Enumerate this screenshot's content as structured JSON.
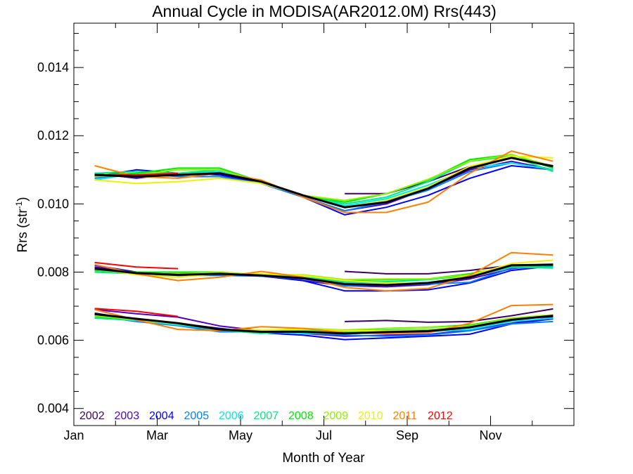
{
  "chart_data": {
    "type": "line",
    "title": "Annual Cycle in MODISA(AR2012.0M) Rrs(443)",
    "xlabel": "Month of Year",
    "ylabel_main": "Rrs (str",
    "ylabel_sup": "-1",
    "ylabel_close": ")",
    "xlim": [
      1,
      13
    ],
    "ylim": [
      0.0035,
      0.0153
    ],
    "x_ticks": [
      {
        "value": 1,
        "label": "Jan"
      },
      {
        "value": 3,
        "label": "Mar"
      },
      {
        "value": 5,
        "label": "May"
      },
      {
        "value": 7,
        "label": "Jul"
      },
      {
        "value": 9,
        "label": "Sep"
      },
      {
        "value": 11,
        "label": "Nov"
      }
    ],
    "y_ticks": [
      {
        "value": 0.004,
        "label": "0.004"
      },
      {
        "value": 0.006,
        "label": "0.006"
      },
      {
        "value": 0.008,
        "label": "0.008"
      },
      {
        "value": 0.01,
        "label": "0.010"
      },
      {
        "value": 0.012,
        "label": "0.012"
      },
      {
        "value": 0.014,
        "label": "0.014"
      }
    ],
    "x_minor_ticks": [
      2,
      4,
      6,
      8,
      10,
      12
    ],
    "y_minor_ticks": [
      0.0045,
      0.005,
      0.0055,
      0.0065,
      0.007,
      0.0075,
      0.0085,
      0.009,
      0.0095,
      0.0105,
      0.011,
      0.0115,
      0.0125,
      0.013,
      0.0135,
      0.0145,
      0.015
    ],
    "x": [
      1.5,
      2.5,
      3.5,
      4.5,
      5.5,
      6.5,
      7.5,
      8.5,
      9.5,
      10.5,
      11.5,
      12.5
    ],
    "series": [
      {
        "name": "2002",
        "color": "#400060",
        "groups": [
          [
            null,
            null,
            null,
            null,
            null,
            null,
            0.0103,
            0.0103,
            0.01065,
            0.0111,
            0.01135,
            0.01112
          ],
          [
            null,
            null,
            null,
            null,
            null,
            null,
            0.00802,
            0.00795,
            0.00795,
            0.00805,
            0.0082,
            0.00822
          ],
          [
            null,
            null,
            null,
            null,
            null,
            null,
            0.00655,
            0.00658,
            0.00653,
            0.00655,
            0.00672,
            0.00692
          ]
        ]
      },
      {
        "name": "2003",
        "color": "#5000c0",
        "groups": [
          [
            0.0109,
            0.01075,
            0.0109,
            0.01095,
            0.0106,
            0.0102,
            0.0098,
            0.01,
            0.01045,
            0.011,
            0.01125,
            0.011
          ],
          [
            0.00815,
            0.008,
            0.0079,
            0.00792,
            0.00788,
            0.00775,
            0.0076,
            0.00757,
            0.00763,
            0.0078,
            0.0081,
            0.00822
          ],
          [
            0.0069,
            0.00678,
            0.00668,
            0.00642,
            0.00628,
            0.0062,
            0.00612,
            0.00615,
            0.00617,
            0.0063,
            0.0065,
            0.00668
          ]
        ]
      },
      {
        "name": "2004",
        "color": "#0000ff",
        "groups": [
          [
            0.0108,
            0.011,
            0.0109,
            0.01085,
            0.0106,
            0.0102,
            0.00968,
            0.0099,
            0.01025,
            0.01075,
            0.01112,
            0.011
          ],
          [
            0.0082,
            0.008,
            0.008,
            0.008,
            0.0079,
            0.00775,
            0.00745,
            0.00745,
            0.00748,
            0.00768,
            0.00805,
            0.00818
          ],
          [
            0.0068,
            0.0066,
            0.0065,
            0.00635,
            0.00622,
            0.00615,
            0.00602,
            0.00607,
            0.00612,
            0.00618,
            0.00648,
            0.00663
          ]
        ]
      },
      {
        "name": "2005",
        "color": "#0080ff",
        "groups": [
          [
            0.01075,
            0.0109,
            0.0108,
            0.0108,
            0.0106,
            0.0102,
            0.0098,
            0.01005,
            0.0104,
            0.01095,
            0.0112,
            0.011
          ],
          [
            0.00808,
            0.00795,
            0.0079,
            0.0079,
            0.00788,
            0.0078,
            0.0076,
            0.00762,
            0.00765,
            0.0077,
            0.00812,
            0.00815
          ],
          [
            0.00672,
            0.00655,
            0.00643,
            0.00625,
            0.00625,
            0.00622,
            0.00615,
            0.00612,
            0.00615,
            0.00628,
            0.00648,
            0.00655
          ]
        ]
      },
      {
        "name": "2006",
        "color": "#00e8e8",
        "groups": [
          [
            0.0107,
            0.0109,
            0.0109,
            0.01095,
            0.01062,
            0.01025,
            0.00995,
            0.01015,
            0.01055,
            0.01105,
            0.0112,
            0.011
          ],
          [
            0.00805,
            0.00795,
            0.00792,
            0.00795,
            0.0079,
            0.00782,
            0.0077,
            0.00768,
            0.0077,
            0.00785,
            0.00815,
            0.00815
          ],
          [
            0.00665,
            0.00658,
            0.00645,
            0.0063,
            0.00625,
            0.0062,
            0.0062,
            0.00622,
            0.00625,
            0.00632,
            0.00655,
            0.00665
          ]
        ]
      },
      {
        "name": "2007",
        "color": "#00e880",
        "groups": [
          [
            0.0109,
            0.01095,
            0.0109,
            0.011,
            0.01065,
            0.01025,
            0.01,
            0.0102,
            0.01065,
            0.01125,
            0.0114,
            0.01095
          ],
          [
            0.008,
            0.00795,
            0.00795,
            0.008,
            0.0079,
            0.00785,
            0.00772,
            0.00772,
            0.00778,
            0.0079,
            0.00815,
            0.00812
          ],
          [
            0.00665,
            0.0066,
            0.00648,
            0.0063,
            0.0062,
            0.00628,
            0.00625,
            0.0063,
            0.00632,
            0.00638,
            0.0066,
            0.00672
          ]
        ]
      },
      {
        "name": "2008",
        "color": "#00e800",
        "groups": [
          [
            0.01085,
            0.0109,
            0.01105,
            0.01105,
            0.01065,
            0.01025,
            0.01005,
            0.0103,
            0.0107,
            0.0113,
            0.01145,
            0.01105
          ],
          [
            0.00805,
            0.008,
            0.008,
            0.008,
            0.0079,
            0.0079,
            0.00775,
            0.00778,
            0.0078,
            0.00795,
            0.00818,
            0.0082
          ],
          [
            0.0067,
            0.0066,
            0.0065,
            0.00632,
            0.00625,
            0.00632,
            0.00628,
            0.00635,
            0.00638,
            0.00645,
            0.00665,
            0.00672
          ]
        ]
      },
      {
        "name": "2009",
        "color": "#90f000",
        "groups": [
          [
            0.0108,
            0.01085,
            0.011,
            0.011,
            0.01065,
            0.01025,
            0.0101,
            0.0103,
            0.01072,
            0.01125,
            0.01145,
            0.0111
          ],
          [
            0.00808,
            0.00795,
            0.00795,
            0.008,
            0.00792,
            0.00792,
            0.00778,
            0.0078,
            0.0078,
            0.00792,
            0.0082,
            0.00822
          ],
          [
            0.00672,
            0.0066,
            0.0065,
            0.00632,
            0.00628,
            0.00635,
            0.0063,
            0.00635,
            0.00638,
            0.00642,
            0.00665,
            0.00675
          ]
        ]
      },
      {
        "name": "2010",
        "color": "#f0f000",
        "groups": [
          [
            0.0107,
            0.0106,
            0.01065,
            0.01075,
            0.0106,
            0.01025,
            0.0099,
            0.0101,
            0.0105,
            0.0111,
            0.0114,
            0.01135
          ],
          [
            0.0081,
            0.00792,
            0.00785,
            0.00795,
            0.00795,
            0.0079,
            0.00775,
            0.00768,
            0.00768,
            0.0079,
            0.00825,
            0.00835
          ],
          [
            0.00678,
            0.0066,
            0.00648,
            0.00632,
            0.0063,
            0.00632,
            0.00628,
            0.00628,
            0.0063,
            0.0064,
            0.0066,
            0.00675
          ]
        ]
      },
      {
        "name": "2011",
        "color": "#ff8000",
        "groups": [
          [
            0.01112,
            0.0108,
            0.01075,
            0.0109,
            0.0107,
            0.0102,
            0.00975,
            0.00975,
            0.01005,
            0.0109,
            0.01155,
            0.01125
          ],
          [
            0.00822,
            0.00795,
            0.00775,
            0.00785,
            0.00802,
            0.00785,
            0.00755,
            0.00745,
            0.00752,
            0.0079,
            0.00857,
            0.0085
          ],
          [
            0.0069,
            0.0066,
            0.00632,
            0.00628,
            0.0064,
            0.00635,
            0.00622,
            0.0062,
            0.00622,
            0.0065,
            0.00702,
            0.00705
          ]
        ]
      },
      {
        "name": "2012",
        "color": "#ff0000",
        "groups": [
          [
            0.01085,
            0.01085,
            0.0109,
            null,
            null,
            null,
            null,
            null,
            null,
            null,
            null,
            null
          ],
          [
            0.00828,
            0.00815,
            0.0081,
            null,
            null,
            null,
            null,
            null,
            null,
            null,
            null,
            null
          ],
          [
            0.00693,
            0.00685,
            0.0067,
            null,
            null,
            null,
            null,
            null,
            null,
            null,
            null,
            null
          ]
        ]
      },
      {
        "name": "",
        "color": "#000000",
        "mean": true,
        "groups": [
          [
            0.01085,
            0.0108,
            0.01085,
            0.0109,
            0.01065,
            0.01025,
            0.0099,
            0.01005,
            0.01045,
            0.01105,
            0.01135,
            0.0111
          ],
          [
            0.0081,
            0.00797,
            0.00792,
            0.00795,
            0.0079,
            0.00782,
            0.00765,
            0.00762,
            0.00768,
            0.00785,
            0.0082,
            0.00822
          ],
          [
            0.00677,
            0.00663,
            0.0065,
            0.00632,
            0.00625,
            0.00625,
            0.0062,
            0.00624,
            0.00627,
            0.00638,
            0.0066,
            0.00672
          ]
        ]
      }
    ]
  }
}
